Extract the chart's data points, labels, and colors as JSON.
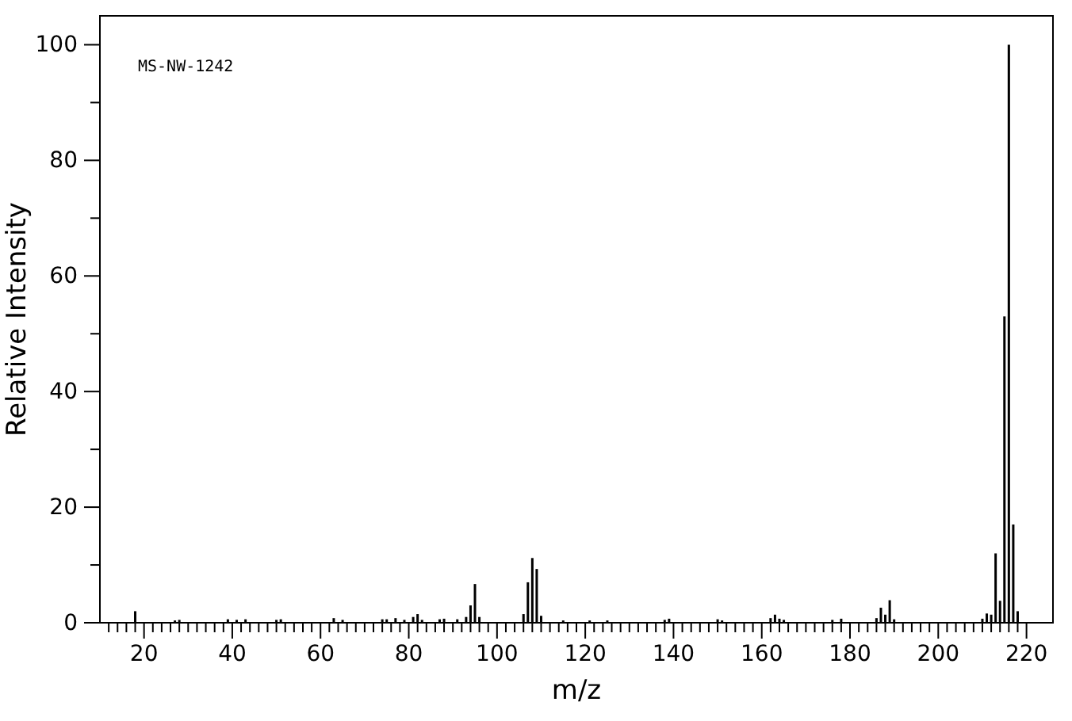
{
  "chart_data": {
    "type": "bar",
    "xlabel": "m/z",
    "ylabel": "Relative Intensity",
    "annotations": [
      "MS-NW-1242"
    ],
    "x": [
      18,
      27,
      28,
      39,
      41,
      43,
      50,
      51,
      63,
      65,
      74,
      75,
      77,
      79,
      81,
      82,
      83,
      87,
      88,
      91,
      93,
      94,
      95,
      96,
      106,
      107,
      108,
      109,
      110,
      115,
      121,
      125,
      138,
      139,
      150,
      151,
      162,
      163,
      164,
      165,
      176,
      178,
      186,
      187,
      188,
      189,
      190,
      210,
      211,
      212,
      213,
      214,
      215,
      216,
      217,
      218
    ],
    "values": [
      2,
      0.4,
      0.5,
      0.6,
      0.5,
      0.6,
      0.5,
      0.6,
      0.8,
      0.5,
      0.6,
      0.6,
      0.8,
      0.5,
      1,
      1.5,
      0.5,
      0.6,
      0.7,
      0.6,
      1,
      3,
      6.7,
      1,
      1.5,
      7,
      11.2,
      9.3,
      1.2,
      0.4,
      0.4,
      0.4,
      0.5,
      0.7,
      0.6,
      0.4,
      0.8,
      1.4,
      0.7,
      0.5,
      0.5,
      0.7,
      0.8,
      2.6,
      1.4,
      3.9,
      0.6,
      0.7,
      1.6,
      1.4,
      12,
      3.8,
      53,
      100,
      17,
      2
    ],
    "color": "#000000",
    "xlim": [
      10,
      226
    ],
    "ylim": [
      0,
      105
    ],
    "xticks": [
      {
        "value": 12,
        "label": null
      },
      {
        "value": 14,
        "label": null
      },
      {
        "value": 16,
        "label": null
      },
      {
        "value": 18,
        "label": null
      },
      20,
      {
        "value": 22,
        "label": null
      },
      {
        "value": 24,
        "label": null
      },
      {
        "value": 26,
        "label": null
      },
      {
        "value": 28,
        "label": null
      },
      {
        "value": 30,
        "label": null
      },
      {
        "value": 32,
        "label": null
      },
      {
        "value": 34,
        "label": null
      },
      {
        "value": 36,
        "label": null
      },
      {
        "value": 38,
        "label": null
      },
      40,
      {
        "value": 42,
        "label": null
      },
      {
        "value": 44,
        "label": null
      },
      {
        "value": 46,
        "label": null
      },
      {
        "value": 48,
        "label": null
      },
      {
        "value": 50,
        "label": null
      },
      {
        "value": 52,
        "label": null
      },
      {
        "value": 54,
        "label": null
      },
      {
        "value": 56,
        "label": null
      },
      {
        "value": 58,
        "label": null
      },
      60,
      {
        "value": 62,
        "label": null
      },
      {
        "value": 64,
        "label": null
      },
      {
        "value": 66,
        "label": null
      },
      {
        "value": 68,
        "label": null
      },
      {
        "value": 70,
        "label": null
      },
      {
        "value": 72,
        "label": null
      },
      {
        "value": 74,
        "label": null
      },
      {
        "value": 76,
        "label": null
      },
      {
        "value": 78,
        "label": null
      },
      80,
      {
        "value": 82,
        "label": null
      },
      {
        "value": 84,
        "label": null
      },
      {
        "value": 86,
        "label": null
      },
      {
        "value": 88,
        "label": null
      },
      {
        "value": 90,
        "label": null
      },
      {
        "value": 92,
        "label": null
      },
      {
        "value": 94,
        "label": null
      },
      {
        "value": 96,
        "label": null
      },
      {
        "value": 98,
        "label": null
      },
      100,
      {
        "value": 102,
        "label": null
      },
      {
        "value": 104,
        "label": null
      },
      {
        "value": 106,
        "label": null
      },
      {
        "value": 108,
        "label": null
      },
      {
        "value": 110,
        "label": null
      },
      {
        "value": 112,
        "label": null
      },
      {
        "value": 114,
        "label": null
      },
      {
        "value": 116,
        "label": null
      },
      {
        "value": 118,
        "label": null
      },
      120,
      {
        "value": 122,
        "label": null
      },
      {
        "value": 124,
        "label": null
      },
      {
        "value": 126,
        "label": null
      },
      {
        "value": 128,
        "label": null
      },
      {
        "value": 130,
        "label": null
      },
      {
        "value": 132,
        "label": null
      },
      {
        "value": 134,
        "label": null
      },
      {
        "value": 136,
        "label": null
      },
      {
        "value": 138,
        "label": null
      },
      140,
      {
        "value": 142,
        "label": null
      },
      {
        "value": 144,
        "label": null
      },
      {
        "value": 146,
        "label": null
      },
      {
        "value": 148,
        "label": null
      },
      {
        "value": 150,
        "label": null
      },
      {
        "value": 152,
        "label": null
      },
      {
        "value": 154,
        "label": null
      },
      {
        "value": 156,
        "label": null
      },
      {
        "value": 158,
        "label": null
      },
      160,
      {
        "value": 162,
        "label": null
      },
      {
        "value": 164,
        "label": null
      },
      {
        "value": 166,
        "label": null
      },
      {
        "value": 168,
        "label": null
      },
      {
        "value": 170,
        "label": null
      },
      {
        "value": 172,
        "label": null
      },
      {
        "value": 174,
        "label": null
      },
      {
        "value": 176,
        "label": null
      },
      {
        "value": 178,
        "label": null
      },
      180,
      {
        "value": 182,
        "label": null
      },
      {
        "value": 184,
        "label": null
      },
      {
        "value": 186,
        "label": null
      },
      {
        "value": 188,
        "label": null
      },
      {
        "value": 190,
        "label": null
      },
      {
        "value": 192,
        "label": null
      },
      {
        "value": 194,
        "label": null
      },
      {
        "value": 196,
        "label": null
      },
      {
        "value": 198,
        "label": null
      },
      200,
      {
        "value": 202,
        "label": null
      },
      {
        "value": 204,
        "label": null
      },
      {
        "value": 206,
        "label": null
      },
      {
        "value": 208,
        "label": null
      },
      {
        "value": 210,
        "label": null
      },
      {
        "value": 212,
        "label": null
      },
      {
        "value": 214,
        "label": null
      },
      {
        "value": 216,
        "label": null
      },
      {
        "value": 218,
        "label": null
      },
      220
    ],
    "yticks": [
      0,
      {
        "value": 10,
        "label": null
      },
      20,
      {
        "value": 30,
        "label": null
      },
      40,
      {
        "value": 50,
        "label": null
      },
      60,
      {
        "value": 70,
        "label": null
      },
      80,
      {
        "value": 90,
        "label": null
      },
      100
    ]
  }
}
